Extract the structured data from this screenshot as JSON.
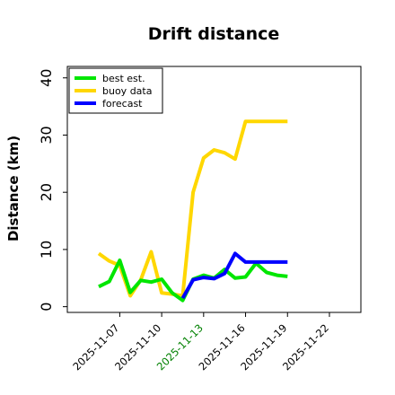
{
  "chart_data": {
    "type": "line",
    "title": "Drift distance",
    "xlabel": "",
    "ylabel": "Distance (km)",
    "ylim": [
      -1,
      42
    ],
    "yticks": [
      0,
      10,
      20,
      30,
      40
    ],
    "xlim": [
      -1,
      27
    ],
    "x_tick_positions": [
      4,
      8,
      12,
      16,
      20,
      24
    ],
    "x_tick_labels": [
      "2025-11-07",
      "2025-11-10",
      "2025-11-13",
      "2025-11-16",
      "2025-11-19",
      "2025-11-22"
    ],
    "x_tick_colors": [
      "#000000",
      "#000000",
      "#008000",
      "#000000",
      "#000000",
      "#000000"
    ],
    "legend_position": "top-left",
    "grid": false,
    "series": [
      {
        "name": "best est.",
        "color": "#00e600",
        "x": [
          2,
          3,
          4,
          5,
          6,
          7,
          8,
          9,
          10,
          11,
          12,
          13,
          14,
          15,
          16,
          17,
          18,
          19,
          20
        ],
        "values": [
          3.5,
          4.4,
          8.1,
          2.5,
          4.6,
          4.3,
          4.8,
          2.4,
          1.1,
          4.8,
          5.5,
          5.0,
          6.5,
          5.0,
          5.2,
          7.6,
          6.0,
          5.5,
          5.3
        ]
      },
      {
        "name": "buoy data",
        "color": "#ffd700",
        "x": [
          2,
          3,
          4,
          5,
          6,
          7,
          8,
          9,
          10,
          11,
          12,
          13,
          14,
          15,
          16,
          17,
          18,
          19,
          20
        ],
        "values": [
          9.3,
          8.0,
          7.2,
          1.9,
          4.7,
          9.6,
          2.4,
          2.2,
          1.9,
          20.0,
          26.0,
          27.4,
          26.9,
          25.8,
          32.4,
          32.4,
          32.4,
          32.4,
          32.4
        ]
      },
      {
        "name": "forecast",
        "color": "#0000ff",
        "x": [
          10,
          11,
          12,
          13,
          14,
          15,
          16,
          17,
          18,
          19,
          20
        ],
        "values": [
          1.5,
          4.7,
          5.1,
          4.9,
          5.8,
          9.3,
          7.8,
          7.8,
          7.8,
          7.8,
          7.8
        ]
      }
    ]
  }
}
